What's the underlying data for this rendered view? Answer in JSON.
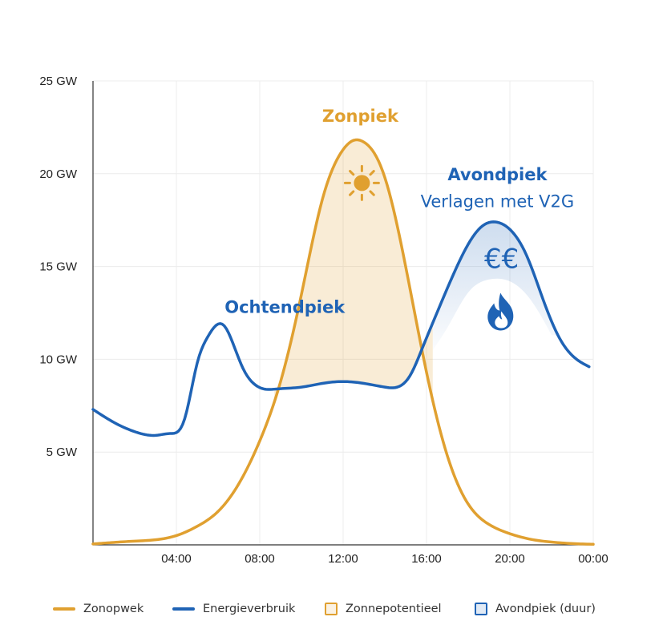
{
  "chart_data": {
    "type": "line",
    "title": "",
    "xlabel": "",
    "ylabel": "",
    "xlim": [
      0,
      24
    ],
    "ylim": [
      0,
      25
    ],
    "x_ticks": [
      {
        "value": 4,
        "label": "04:00"
      },
      {
        "value": 8,
        "label": "08:00"
      },
      {
        "value": 12,
        "label": "12:00"
      },
      {
        "value": 16,
        "label": "16:00"
      },
      {
        "value": 20,
        "label": "20:00"
      },
      {
        "value": 24,
        "label": "00:00"
      }
    ],
    "y_ticks": [
      {
        "value": 5,
        "label": "5 GW"
      },
      {
        "value": 10,
        "label": "10 GW"
      },
      {
        "value": 15,
        "label": "15 GW"
      },
      {
        "value": 20,
        "label": "20 GW"
      },
      {
        "value": 25,
        "label": "25 GW"
      }
    ],
    "grid": true,
    "series": [
      {
        "name": "Zonopwek",
        "color": "#e0a030",
        "x": [
          0,
          2,
          4,
          5,
          6,
          7,
          8,
          9,
          10,
          11,
          12,
          12.5,
          13,
          13.5,
          14,
          15,
          16,
          17,
          18,
          19,
          20,
          21,
          22,
          23,
          24
        ],
        "values": [
          0.05,
          0.2,
          0.5,
          1.0,
          1.8,
          3.3,
          5.6,
          8.8,
          13.5,
          18.6,
          21.3,
          21.8,
          21.7,
          21.1,
          19.8,
          15.0,
          9.3,
          4.8,
          2.2,
          1.1,
          0.6,
          0.3,
          0.15,
          0.07,
          0.03
        ]
      },
      {
        "name": "Energieverbruik",
        "color": "#1f63b5",
        "x": [
          0,
          1,
          2,
          3,
          3.7,
          4.4,
          5.0,
          5.5,
          6.0,
          6.3,
          6.7,
          7.2,
          7.7,
          8.2,
          8.8,
          10,
          11,
          12,
          13,
          14,
          14.6,
          15.2,
          15.8,
          16.5,
          17.3,
          18,
          18.7,
          19.3,
          20,
          20.8,
          21.6,
          22.4,
          23.2,
          23.8
        ],
        "values": [
          7.3,
          6.6,
          6.1,
          5.9,
          6.0,
          6.8,
          9.8,
          11.2,
          11.9,
          11.8,
          10.9,
          9.5,
          8.7,
          8.4,
          8.4,
          8.5,
          8.7,
          8.8,
          8.7,
          8.5,
          8.5,
          9.1,
          10.6,
          12.5,
          14.6,
          16.2,
          17.2,
          17.4,
          17.0,
          15.6,
          13.2,
          11.1,
          10.0,
          9.6
        ]
      }
    ],
    "areas": [
      {
        "name": "Zonnepotentieel",
        "color": "#e0a030",
        "description": "between Zonopwek and Energieverbruik",
        "x_range": [
          8.7,
          16.3
        ]
      },
      {
        "name": "Avondpiek (duur)",
        "color": "#1f63b5",
        "x": [
          16.3,
          17,
          18,
          19,
          20,
          21,
          22
        ],
        "lower": [
          10.5,
          11.7,
          13.6,
          14.3,
          14.2,
          13.2,
          11.3
        ],
        "x_range": [
          16.3,
          22.2
        ]
      }
    ],
    "annotations": [
      {
        "text": "Zonpiek",
        "style": "bold",
        "color": "#e0a030"
      },
      {
        "text": "Ochtendpiek",
        "style": "bold",
        "color": "#1f63b5"
      },
      {
        "text": "Avondpiek",
        "style": "bold",
        "color": "#1f63b5"
      },
      {
        "text": "Verlagen met V2G",
        "style": "regular",
        "color": "#1f63b5"
      }
    ],
    "icons": [
      {
        "name": "sun-icon",
        "color": "#e0a030"
      },
      {
        "name": "euro-icon",
        "text": "€€",
        "color": "#1f63b5"
      },
      {
        "name": "flame-icon",
        "color": "#1f63b5"
      }
    ],
    "legend_position": "bottom",
    "legend": [
      {
        "label": "Zonopwek",
        "kind": "line",
        "color": "#e0a030"
      },
      {
        "label": "Energieverbruik",
        "kind": "line",
        "color": "#1f63b5"
      },
      {
        "label": "Zonnepotentieel",
        "kind": "box",
        "color": "#e0a030"
      },
      {
        "label": "Avondpiek (duur)",
        "kind": "box",
        "color": "#1f63b5"
      }
    ]
  }
}
